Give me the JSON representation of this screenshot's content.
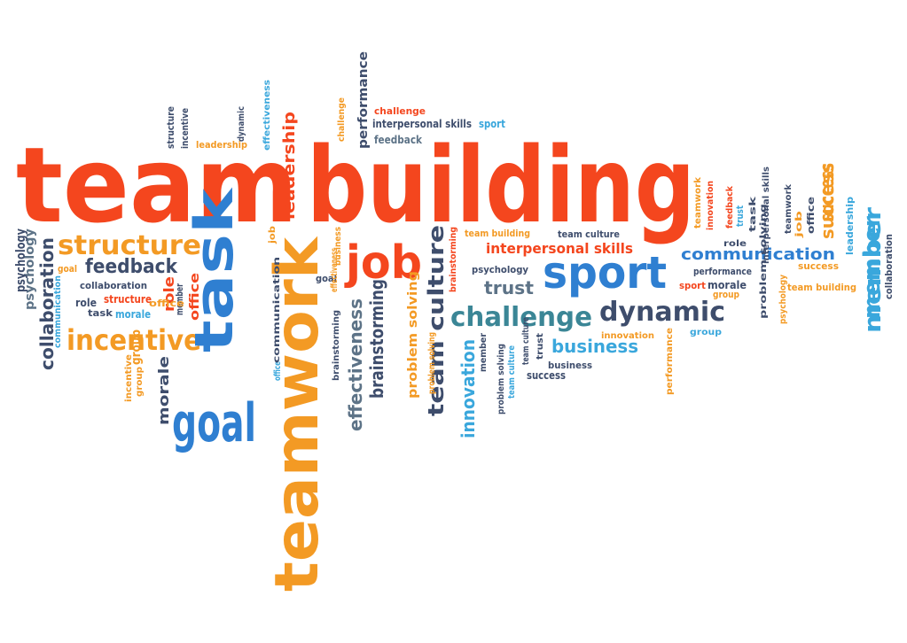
{
  "colors": {
    "red": "#f4461e",
    "orange": "#f39a24",
    "blue": "#2f7fd1",
    "lightblue": "#3aa7dc",
    "navy": "#3e4d6c",
    "slate": "#5d7387",
    "teal": "#3b8696"
  },
  "headline": {
    "team": "team",
    "building": "building"
  },
  "words": [
    {
      "text": "structure",
      "color": "orange"
    },
    {
      "text": "feedback",
      "color": "navy"
    },
    {
      "text": "incentive",
      "color": "orange"
    },
    {
      "text": "goal",
      "color": "blue"
    },
    {
      "text": "task",
      "color": "blue"
    },
    {
      "text": "teamwork",
      "color": "orange"
    },
    {
      "text": "job",
      "color": "red"
    },
    {
      "text": "sport",
      "color": "blue"
    },
    {
      "text": "challenge",
      "color": "teal"
    },
    {
      "text": "dynamic",
      "color": "navy"
    },
    {
      "text": "team culture",
      "color": "navy"
    },
    {
      "text": "interpersonal skills",
      "color": "red"
    },
    {
      "text": "trust",
      "color": "slate"
    },
    {
      "text": "communication",
      "color": "blue"
    },
    {
      "text": "business",
      "color": "lightblue"
    },
    {
      "text": "member",
      "color": "lightblue"
    },
    {
      "text": "success",
      "color": "orange"
    },
    {
      "text": "brainstorming",
      "color": "navy"
    },
    {
      "text": "effectiveness",
      "color": "slate"
    },
    {
      "text": "innovation",
      "color": "lightblue"
    },
    {
      "text": "collaboration",
      "color": "navy"
    },
    {
      "text": "psychology",
      "color": "slate"
    },
    {
      "text": "leadership",
      "color": "red"
    },
    {
      "text": "performance",
      "color": "navy"
    },
    {
      "text": "problem solving",
      "color": "orange"
    },
    {
      "text": "morale",
      "color": "navy"
    },
    {
      "text": "role",
      "color": "red"
    },
    {
      "text": "office",
      "color": "red"
    },
    {
      "text": "group",
      "color": "orange"
    },
    {
      "text": "challenge",
      "color": "red"
    },
    {
      "text": "interpersonal skills",
      "color": "navy"
    },
    {
      "text": "sport",
      "color": "lightblue"
    },
    {
      "text": "feedback",
      "color": "slate"
    },
    {
      "text": "leadership",
      "color": "orange"
    },
    {
      "text": "structure",
      "color": "navy"
    },
    {
      "text": "incentive",
      "color": "navy"
    },
    {
      "text": "dynamic",
      "color": "navy"
    },
    {
      "text": "effectiveness",
      "color": "lightblue"
    },
    {
      "text": "challenge",
      "color": "orange"
    },
    {
      "text": "goal",
      "color": "orange"
    },
    {
      "text": "collaboration",
      "color": "navy"
    },
    {
      "text": "communication",
      "color": "lightblue"
    },
    {
      "text": "role",
      "color": "navy"
    },
    {
      "text": "task",
      "color": "navy"
    },
    {
      "text": "morale",
      "color": "lightblue"
    },
    {
      "text": "structure",
      "color": "red"
    },
    {
      "text": "member",
      "color": "navy"
    },
    {
      "text": "office",
      "color": "orange"
    },
    {
      "text": "incentive",
      "color": "orange"
    },
    {
      "text": "group",
      "color": "orange"
    },
    {
      "text": "psychology",
      "color": "navy"
    },
    {
      "text": "team building",
      "color": "orange"
    },
    {
      "text": "team culture",
      "color": "navy"
    },
    {
      "text": "psychology",
      "color": "navy"
    },
    {
      "text": "brainstorming",
      "color": "red"
    },
    {
      "text": "goal",
      "color": "navy"
    },
    {
      "text": "business",
      "color": "orange"
    },
    {
      "text": "job",
      "color": "orange"
    },
    {
      "text": "brainstorming",
      "color": "navy"
    },
    {
      "text": "office",
      "color": "lightblue"
    },
    {
      "text": "communication",
      "color": "navy"
    },
    {
      "text": "problem solving",
      "color": "orange"
    },
    {
      "text": "effectiveness",
      "color": "orange"
    },
    {
      "text": "innovation",
      "color": "orange"
    },
    {
      "text": "team culture",
      "color": "navy"
    },
    {
      "text": "member",
      "color": "navy"
    },
    {
      "text": "problem solving",
      "color": "navy"
    },
    {
      "text": "trust",
      "color": "navy"
    },
    {
      "text": "team culture",
      "color": "lightblue"
    },
    {
      "text": "success",
      "color": "navy"
    },
    {
      "text": "business",
      "color": "navy"
    },
    {
      "text": "performance",
      "color": "orange"
    },
    {
      "text": "group",
      "color": "lightblue"
    },
    {
      "text": "role",
      "color": "navy"
    },
    {
      "text": "performance",
      "color": "navy"
    },
    {
      "text": "sport",
      "color": "red"
    },
    {
      "text": "morale",
      "color": "navy"
    },
    {
      "text": "group",
      "color": "orange"
    },
    {
      "text": "teamwork",
      "color": "orange"
    },
    {
      "text": "innovation",
      "color": "red"
    },
    {
      "text": "feedback",
      "color": "red"
    },
    {
      "text": "trust",
      "color": "lightblue"
    },
    {
      "text": "task",
      "color": "navy"
    },
    {
      "text": "problem solving",
      "color": "navy"
    },
    {
      "text": "interpersonal skills",
      "color": "navy"
    },
    {
      "text": "teamwork",
      "color": "navy"
    },
    {
      "text": "job",
      "color": "orange"
    },
    {
      "text": "office",
      "color": "navy"
    },
    {
      "text": "psychology",
      "color": "orange"
    },
    {
      "text": "success",
      "color": "orange"
    },
    {
      "text": "success",
      "color": "orange"
    },
    {
      "text": "leadership",
      "color": "lightblue"
    },
    {
      "text": "team building",
      "color": "orange"
    },
    {
      "text": "member",
      "color": "lightblue"
    },
    {
      "text": "collaboration",
      "color": "navy"
    }
  ]
}
